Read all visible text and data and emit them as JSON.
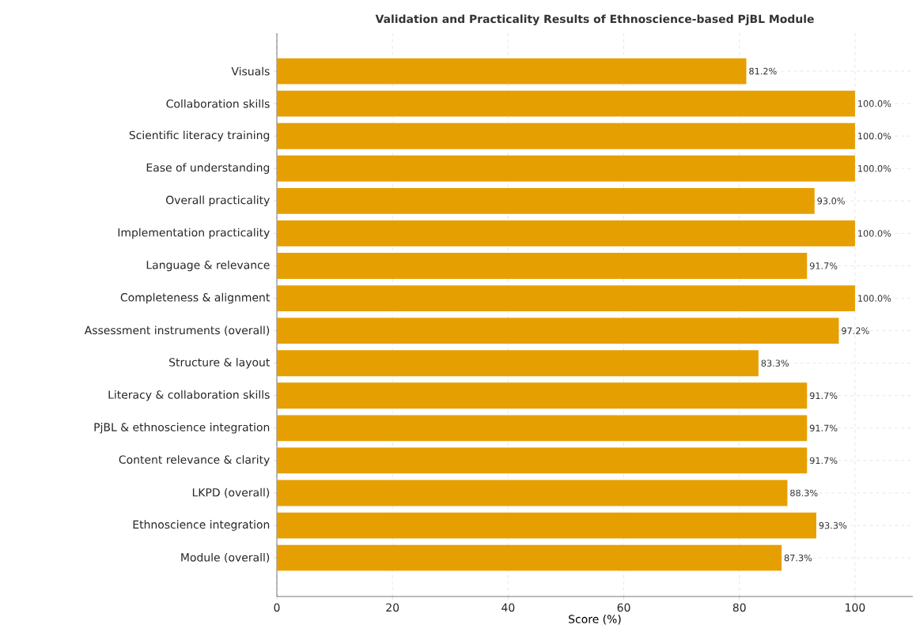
{
  "chart_data": {
    "type": "bar",
    "orientation": "horizontal",
    "title": "Validation and Practicality Results of Ethnoscience-based PjBL Module",
    "xlabel": "Score (%)",
    "categories": [
      "Visuals",
      "Collaboration skills",
      "Scientific literacy training",
      "Ease of understanding",
      "Overall practicality",
      "Implementation practicality",
      "Language & relevance",
      "Completeness & alignment",
      "Assessment instruments (overall)",
      "Structure & layout",
      "Literacy & collaboration skills",
      "PjBL & ethnoscience integration",
      "Content relevance & clarity",
      "LKPD (overall)",
      "Ethnoscience integration",
      "Module (overall)"
    ],
    "values": [
      81.2,
      100.0,
      100.0,
      100.0,
      93.0,
      100.0,
      91.7,
      100.0,
      97.2,
      83.3,
      91.7,
      91.7,
      91.7,
      88.3,
      93.3,
      87.3
    ],
    "value_labels": [
      "81.2%",
      "100.0%",
      "100.0%",
      "100.0%",
      "93.0%",
      "100.0%",
      "91.7%",
      "100.0%",
      "97.2%",
      "83.3%",
      "91.7%",
      "91.7%",
      "91.7%",
      "88.3%",
      "93.3%",
      "87.3%"
    ],
    "color": "#e69f00",
    "xlim": [
      0,
      110
    ],
    "xticks": [
      0,
      20,
      40,
      60,
      80,
      100
    ],
    "grid": true
  }
}
